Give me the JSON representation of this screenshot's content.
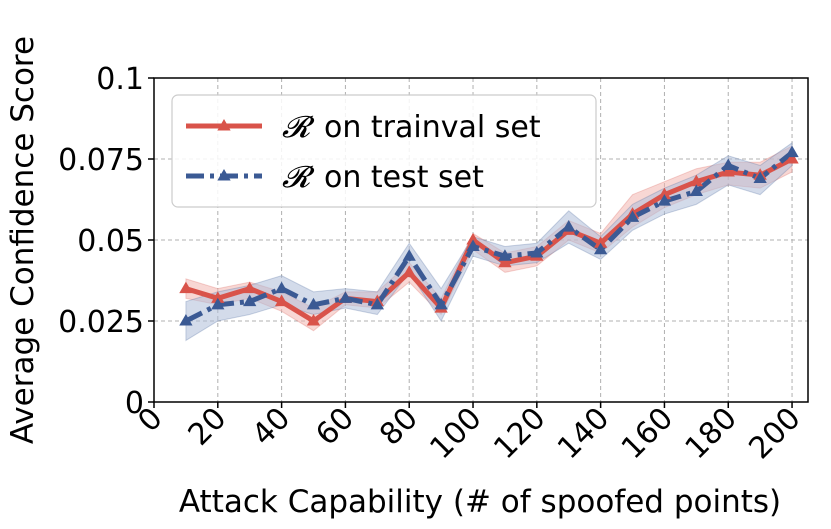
{
  "chart_data": {
    "type": "line",
    "xlabel": "Attack Capability (# of spoofed points)",
    "ylabel": "Average Confidence Score",
    "xlim": [
      0,
      205
    ],
    "ylim": [
      0,
      0.1
    ],
    "xticks": [
      "0",
      "20",
      "40",
      "60",
      "80",
      "100",
      "120",
      "140",
      "160",
      "180",
      "200"
    ],
    "yticks": [
      "0",
      "0.025",
      "0.05",
      "0.075",
      "0.1"
    ],
    "grid": true,
    "legend_position": "top-left",
    "x": [
      10,
      20,
      30,
      40,
      50,
      60,
      70,
      80,
      90,
      100,
      110,
      120,
      130,
      140,
      150,
      160,
      170,
      180,
      190,
      200
    ],
    "series": [
      {
        "symbol": "𝓡",
        "name": "on trainval set",
        "color": "#d9534a",
        "fill": "#f2b6b0",
        "style": "solid",
        "values": [
          0.035,
          0.032,
          0.035,
          0.031,
          0.025,
          0.032,
          0.031,
          0.04,
          0.029,
          0.05,
          0.043,
          0.045,
          0.053,
          0.049,
          0.058,
          0.064,
          0.068,
          0.071,
          0.07,
          0.075
        ],
        "lower": [
          0.032,
          0.03,
          0.032,
          0.028,
          0.022,
          0.03,
          0.029,
          0.037,
          0.027,
          0.047,
          0.04,
          0.042,
          0.05,
          0.046,
          0.054,
          0.06,
          0.064,
          0.067,
          0.066,
          0.071
        ],
        "upper": [
          0.038,
          0.035,
          0.037,
          0.034,
          0.029,
          0.034,
          0.034,
          0.043,
          0.032,
          0.052,
          0.046,
          0.048,
          0.056,
          0.052,
          0.064,
          0.068,
          0.072,
          0.074,
          0.074,
          0.079
        ]
      },
      {
        "symbol": "𝓡",
        "name": "on test set",
        "color": "#3b5a94",
        "fill": "#aebdd9",
        "style": "dashdot",
        "values": [
          0.025,
          0.03,
          0.031,
          0.035,
          0.03,
          0.032,
          0.03,
          0.045,
          0.03,
          0.048,
          0.045,
          0.046,
          0.054,
          0.047,
          0.057,
          0.062,
          0.065,
          0.073,
          0.069,
          0.077
        ],
        "lower": [
          0.019,
          0.025,
          0.027,
          0.03,
          0.027,
          0.029,
          0.027,
          0.04,
          0.025,
          0.045,
          0.042,
          0.043,
          0.049,
          0.044,
          0.053,
          0.058,
          0.061,
          0.067,
          0.064,
          0.073
        ],
        "upper": [
          0.031,
          0.034,
          0.036,
          0.039,
          0.034,
          0.035,
          0.034,
          0.049,
          0.035,
          0.051,
          0.048,
          0.049,
          0.059,
          0.051,
          0.061,
          0.066,
          0.07,
          0.076,
          0.073,
          0.08
        ]
      }
    ]
  }
}
